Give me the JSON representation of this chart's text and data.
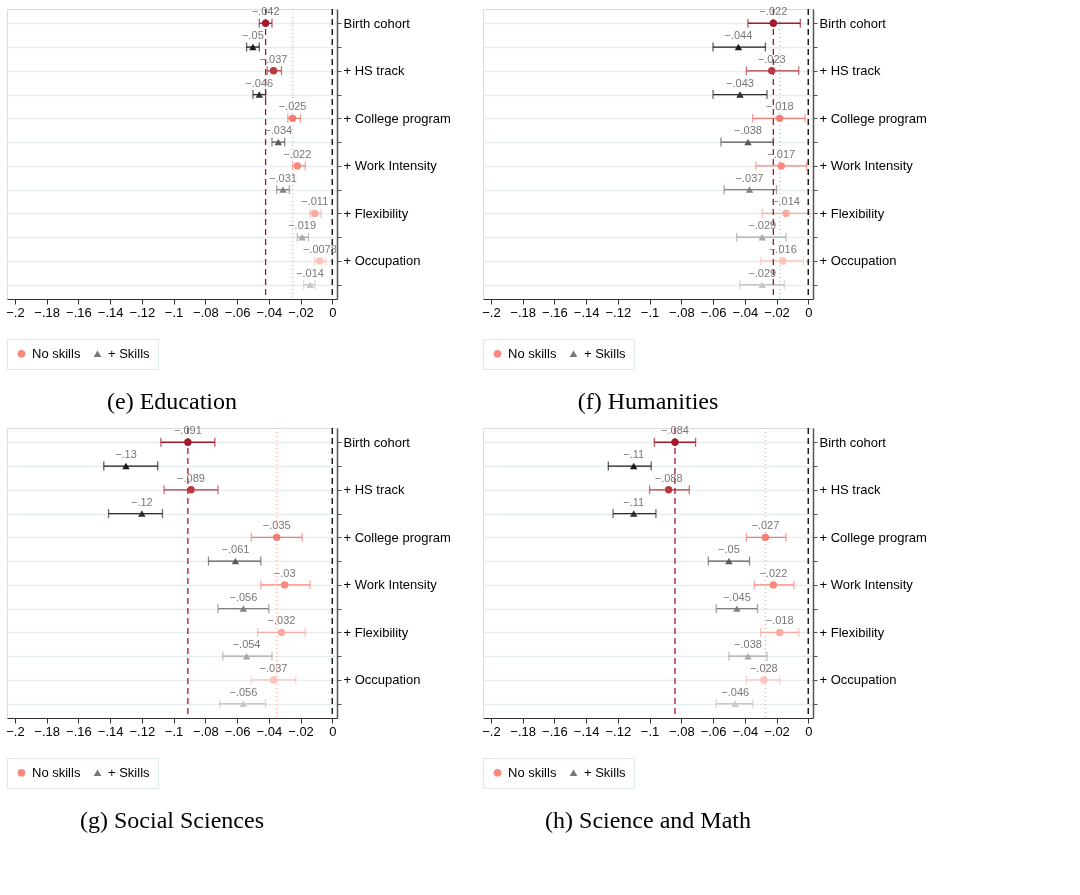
{
  "chart_data": [
    {
      "type": "scatter",
      "orientation": "horizontal",
      "title": "(e) Education",
      "categories": [
        "Birth cohort",
        "+ HS track",
        "+ College program",
        "+ Work Intensity",
        "+ Flexibility",
        "+ Occupation"
      ],
      "series": [
        {
          "name": "No skills",
          "marker": "circle",
          "color": "#f8897c",
          "values": [
            -0.042,
            -0.037,
            -0.025,
            -0.022,
            -0.011,
            -0.0078
          ],
          "colors": [
            "#a3192a",
            "#b83a3e",
            "#f47c70",
            "#f8897c",
            "#f9ab9f",
            "#fcc4b9"
          ],
          "errors": [
            [
              -0.046,
              -0.038
            ],
            [
              -0.041,
              -0.032
            ],
            [
              -0.028,
              -0.02
            ],
            [
              -0.025,
              -0.017
            ],
            [
              -0.014,
              -0.007
            ],
            [
              -0.011,
              -0.004
            ]
          ],
          "value_labels": [
            "−.042",
            "−.037",
            "−.025",
            "−.022",
            "−.011",
            "−.0078"
          ]
        },
        {
          "name": "+ Skills",
          "marker": "triangle",
          "color": "#777777",
          "values": [
            -0.05,
            -0.046,
            -0.034,
            -0.031,
            -0.019,
            -0.014
          ],
          "colors": [
            "#1a1a1a",
            "#2e2e2e",
            "#5a5a5a",
            "#808080",
            "#a8a8a8",
            "#c8c8c8"
          ],
          "errors": [
            [
              -0.054,
              -0.046
            ],
            [
              -0.05,
              -0.042
            ],
            [
              -0.038,
              -0.03
            ],
            [
              -0.035,
              -0.027
            ],
            [
              -0.022,
              -0.015
            ],
            [
              -0.018,
              -0.011
            ]
          ],
          "value_labels": [
            "−.05",
            "−.046",
            "−.034",
            "−.031",
            "−.019",
            "−.014"
          ]
        }
      ],
      "xlim": [
        -0.205,
        0.003
      ],
      "xticks": [
        {
          "value": -0.2,
          "label": "−.2"
        },
        {
          "value": -0.18,
          "label": "−.18"
        },
        {
          "value": -0.16,
          "label": "−.16"
        },
        {
          "value": -0.14,
          "label": "−.14"
        },
        {
          "value": -0.12,
          "label": "−.12"
        },
        {
          "value": -0.1,
          "label": "−.1"
        },
        {
          "value": -0.08,
          "label": "−.08"
        },
        {
          "value": -0.06,
          "label": "−.06"
        },
        {
          "value": -0.04,
          "label": "−.04"
        },
        {
          "value": -0.02,
          "label": "−.02"
        },
        0
      ],
      "ref_lines": [
        {
          "axis": "x",
          "value": 0,
          "color": "#000000",
          "line_style": "dashed"
        },
        {
          "axis": "x",
          "value": -0.042,
          "color": "#a3192a",
          "line_style": "dashed"
        },
        {
          "axis": "x",
          "value": -0.025,
          "color": "#f9ab9f",
          "line_style": "dotted"
        }
      ],
      "grid": "y",
      "legend": "bottom"
    },
    {
      "type": "scatter",
      "orientation": "horizontal",
      "title": "(f) Humanities",
      "categories": [
        "Birth cohort",
        "+ HS track",
        "+ College program",
        "+ Work Intensity",
        "+ Flexibility",
        "+ Occupation"
      ],
      "series": [
        {
          "name": "No skills",
          "marker": "circle",
          "color": "#f8897c",
          "values": [
            -0.022,
            -0.023,
            -0.018,
            -0.017,
            -0.014,
            -0.016
          ],
          "colors": [
            "#a3192a",
            "#b83a3e",
            "#f47c70",
            "#f8897c",
            "#f9ab9f",
            "#fcc4b9"
          ],
          "errors": [
            [
              -0.038,
              -0.005
            ],
            [
              -0.039,
              -0.006
            ],
            [
              -0.035,
              -0.002
            ],
            [
              -0.033,
              -0.001
            ],
            [
              -0.029,
              0.001
            ],
            [
              -0.03,
              -0.003
            ]
          ],
          "value_labels": [
            "−.022",
            "−.023",
            "−.018",
            "−.017",
            "−.014",
            "−.016"
          ]
        },
        {
          "name": "+ Skills",
          "marker": "triangle",
          "color": "#777777",
          "values": [
            -0.044,
            -0.043,
            -0.038,
            -0.037,
            -0.029,
            -0.029
          ],
          "colors": [
            "#1a1a1a",
            "#2e2e2e",
            "#5a5a5a",
            "#808080",
            "#a8a8a8",
            "#c8c8c8"
          ],
          "errors": [
            [
              -0.06,
              -0.027
            ],
            [
              -0.06,
              -0.026
            ],
            [
              -0.055,
              -0.022
            ],
            [
              -0.053,
              -0.02
            ],
            [
              -0.045,
              -0.014
            ],
            [
              -0.043,
              -0.015
            ]
          ],
          "value_labels": [
            "−.044",
            "−.043",
            "−.038",
            "−.037",
            "−.029",
            "−.029"
          ]
        }
      ],
      "xlim": [
        -0.205,
        0.003
      ],
      "xticks": [
        {
          "value": -0.2,
          "label": "−.2"
        },
        {
          "value": -0.18,
          "label": "−.18"
        },
        {
          "value": -0.16,
          "label": "−.16"
        },
        {
          "value": -0.14,
          "label": "−.14"
        },
        {
          "value": -0.12,
          "label": "−.12"
        },
        {
          "value": -0.1,
          "label": "−.1"
        },
        {
          "value": -0.08,
          "label": "−.08"
        },
        {
          "value": -0.06,
          "label": "−.06"
        },
        {
          "value": -0.04,
          "label": "−.04"
        },
        {
          "value": -0.02,
          "label": "−.02"
        },
        0
      ],
      "ref_lines": [
        {
          "axis": "x",
          "value": 0,
          "color": "#000000",
          "line_style": "dashed"
        },
        {
          "axis": "x",
          "value": -0.022,
          "color": "#a3192a",
          "line_style": "dashed"
        },
        {
          "axis": "x",
          "value": -0.018,
          "color": "#f9ab9f",
          "line_style": "dotted"
        }
      ],
      "grid": "y",
      "legend": "bottom"
    },
    {
      "type": "scatter",
      "orientation": "horizontal",
      "title": "(g) Social Sciences",
      "categories": [
        "Birth cohort",
        "+ HS track",
        "+ College program",
        "+ Work Intensity",
        "+ Flexibility",
        "+ Occupation"
      ],
      "series": [
        {
          "name": "No skills",
          "marker": "circle",
          "color": "#f8897c",
          "values": [
            -0.091,
            -0.089,
            -0.035,
            -0.03,
            -0.032,
            -0.037
          ],
          "colors": [
            "#a3192a",
            "#b83a3e",
            "#f47c70",
            "#f8897c",
            "#f9ab9f",
            "#fcc4b9"
          ],
          "errors": [
            [
              -0.108,
              -0.074
            ],
            [
              -0.106,
              -0.072
            ],
            [
              -0.051,
              -0.019
            ],
            [
              -0.045,
              -0.014
            ],
            [
              -0.047,
              -0.017
            ],
            [
              -0.051,
              -0.023
            ]
          ],
          "value_labels": [
            "−.091",
            "−.089",
            "−.035",
            "−.03",
            "−.032",
            "−.037"
          ]
        },
        {
          "name": "+ Skills",
          "marker": "triangle",
          "color": "#777777",
          "values": [
            -0.13,
            -0.12,
            -0.061,
            -0.056,
            -0.054,
            -0.056
          ],
          "colors": [
            "#1a1a1a",
            "#2e2e2e",
            "#5a5a5a",
            "#808080",
            "#a8a8a8",
            "#c8c8c8"
          ],
          "errors": [
            [
              -0.144,
              -0.11
            ],
            [
              -0.141,
              -0.107
            ],
            [
              -0.078,
              -0.045
            ],
            [
              -0.072,
              -0.04
            ],
            [
              -0.069,
              -0.038
            ],
            [
              -0.071,
              -0.042
            ]
          ],
          "value_labels": [
            "−.13",
            "−.12",
            "−.061",
            "−.056",
            "−.054",
            "−.056"
          ]
        }
      ],
      "xlim": [
        -0.205,
        0.003
      ],
      "xticks": [
        {
          "value": -0.2,
          "label": "−.2"
        },
        {
          "value": -0.18,
          "label": "−.18"
        },
        {
          "value": -0.16,
          "label": "−.16"
        },
        {
          "value": -0.14,
          "label": "−.14"
        },
        {
          "value": -0.12,
          "label": "−.12"
        },
        {
          "value": -0.1,
          "label": "−.1"
        },
        {
          "value": -0.08,
          "label": "−.08"
        },
        {
          "value": -0.06,
          "label": "−.06"
        },
        {
          "value": -0.04,
          "label": "−.04"
        },
        {
          "value": -0.02,
          "label": "−.02"
        },
        0
      ],
      "ref_lines": [
        {
          "axis": "x",
          "value": 0,
          "color": "#000000",
          "line_style": "dashed"
        },
        {
          "axis": "x",
          "value": -0.091,
          "color": "#a3192a",
          "line_style": "dashed"
        },
        {
          "axis": "x",
          "value": -0.035,
          "color": "#f9ab9f",
          "line_style": "dotted"
        }
      ],
      "grid": "y",
      "legend": "bottom"
    },
    {
      "type": "scatter",
      "orientation": "horizontal",
      "title": "(h) Science and Math",
      "categories": [
        "Birth cohort",
        "+ HS track",
        "+ College program",
        "+ Work Intensity",
        "+ Flexibility",
        "+ Occupation"
      ],
      "series": [
        {
          "name": "No skills",
          "marker": "circle",
          "color": "#f8897c",
          "values": [
            -0.084,
            -0.088,
            -0.027,
            -0.022,
            -0.018,
            -0.028
          ],
          "colors": [
            "#a3192a",
            "#b83a3e",
            "#f47c70",
            "#f8897c",
            "#f9ab9f",
            "#fcc4b9"
          ],
          "errors": [
            [
              -0.097,
              -0.071
            ],
            [
              -0.1,
              -0.075
            ],
            [
              -0.039,
              -0.014
            ],
            [
              -0.034,
              -0.009
            ],
            [
              -0.03,
              -0.006
            ],
            [
              -0.039,
              -0.018
            ]
          ],
          "value_labels": [
            "−.084",
            "−.088",
            "−.027",
            "−.022",
            "−.018",
            "−.028"
          ]
        },
        {
          "name": "+ Skills",
          "marker": "triangle",
          "color": "#777777",
          "values": [
            -0.11,
            -0.11,
            -0.05,
            -0.045,
            -0.038,
            -0.046
          ],
          "colors": [
            "#1a1a1a",
            "#2e2e2e",
            "#5a5a5a",
            "#808080",
            "#a8a8a8",
            "#c8c8c8"
          ],
          "errors": [
            [
              -0.126,
              -0.099
            ],
            [
              -0.123,
              -0.096
            ],
            [
              -0.063,
              -0.037
            ],
            [
              -0.058,
              -0.032
            ],
            [
              -0.05,
              -0.026
            ],
            [
              -0.058,
              -0.035
            ]
          ],
          "value_labels": [
            "−.11",
            "−.11",
            "−.05",
            "−.045",
            "−.038",
            "−.046"
          ]
        }
      ],
      "xlim": [
        -0.205,
        0.003
      ],
      "xticks": [
        {
          "value": -0.2,
          "label": "−.2"
        },
        {
          "value": -0.18,
          "label": "−.18"
        },
        {
          "value": -0.16,
          "label": "−.16"
        },
        {
          "value": -0.14,
          "label": "−.14"
        },
        {
          "value": -0.12,
          "label": "−.12"
        },
        {
          "value": -0.1,
          "label": "−.1"
        },
        {
          "value": -0.08,
          "label": "−.08"
        },
        {
          "value": -0.06,
          "label": "−.06"
        },
        {
          "value": -0.04,
          "label": "−.04"
        },
        {
          "value": -0.02,
          "label": "−.02"
        },
        0
      ],
      "ref_lines": [
        {
          "axis": "x",
          "value": 0,
          "color": "#000000",
          "line_style": "dashed"
        },
        {
          "axis": "x",
          "value": -0.084,
          "color": "#a3192a",
          "line_style": "dashed"
        },
        {
          "axis": "x",
          "value": -0.027,
          "color": "#f9ab9f",
          "line_style": "dotted"
        }
      ],
      "grid": "y",
      "legend": "bottom"
    }
  ]
}
